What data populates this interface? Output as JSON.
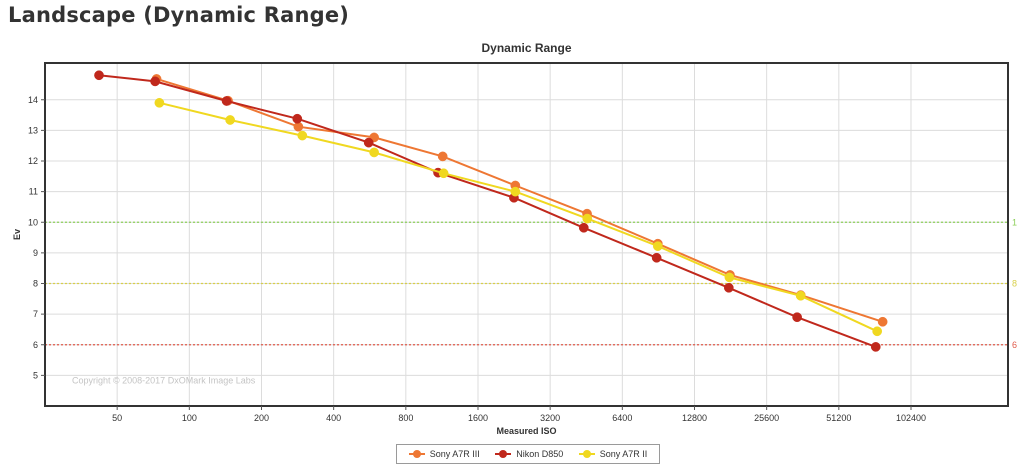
{
  "page": {
    "heading": "Landscape (Dynamic Range)"
  },
  "chart_data": {
    "type": "line",
    "title": "Dynamic Range",
    "xlabel": "Measured ISO",
    "ylabel": "Ev",
    "x_scale": "log2",
    "x_ticks": [
      50,
      100,
      200,
      400,
      800,
      1600,
      3200,
      6400,
      12800,
      25600,
      51200,
      102400
    ],
    "y_ticks": [
      5,
      6,
      7,
      8,
      9,
      10,
      11,
      12,
      13,
      14
    ],
    "xlim": [
      25,
      260000
    ],
    "ylim": [
      4,
      15.2
    ],
    "grid": true,
    "watermark": "Copyright © 2008-2017 DxOMark Image Labs",
    "reference_lines": [
      {
        "y": 10,
        "color": "#8ccf5a",
        "label": "1"
      },
      {
        "y": 8,
        "color": "#d8d04a",
        "label": "8"
      },
      {
        "y": 6,
        "color": "#e05a4a",
        "label": "6"
      }
    ],
    "legend_position": "bottom-center",
    "series": [
      {
        "name": "Sony A7R III",
        "color": "#ee7733",
        "x": [
          73,
          145,
          285,
          590,
          1140,
          2290,
          4560,
          9000,
          18000,
          35500,
          78000
        ],
        "y": [
          14.68,
          13.97,
          13.12,
          12.77,
          12.15,
          11.2,
          10.28,
          9.3,
          8.28,
          7.62,
          6.75
        ]
      },
      {
        "name": "Nikon D850",
        "color": "#c0281c",
        "x": [
          42,
          72,
          143,
          282,
          560,
          1090,
          2260,
          4420,
          8900,
          17800,
          34300,
          73000
        ],
        "y": [
          14.8,
          14.6,
          13.96,
          13.38,
          12.6,
          11.62,
          10.8,
          9.82,
          8.84,
          7.86,
          6.9,
          5.93
        ]
      },
      {
        "name": "Sony A7R II",
        "color": "#f0d820",
        "x": [
          75,
          148,
          296,
          590,
          1150,
          2290,
          4570,
          9000,
          17900,
          35500,
          74000
        ],
        "y": [
          13.9,
          13.34,
          12.83,
          12.28,
          11.6,
          11.0,
          10.12,
          9.22,
          8.2,
          7.6,
          6.44
        ]
      }
    ]
  }
}
